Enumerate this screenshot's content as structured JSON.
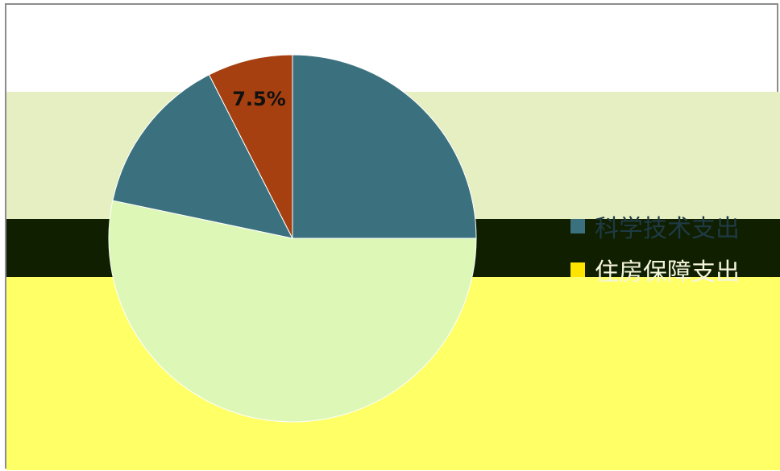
{
  "chart_data": {
    "type": "pie",
    "title": "",
    "slices": [
      {
        "label": "",
        "value": 25.0,
        "color": "#3b717f",
        "label_color": "#000000"
      },
      {
        "label": "",
        "value": 53.3,
        "color": "#dcf7b6",
        "label_color": "#2a2a2a"
      },
      {
        "label": "",
        "value": 14.2,
        "color": "#3b717f",
        "label_color": "#ffffff"
      },
      {
        "label": "7.5%",
        "value": 7.5,
        "color": "#a64010",
        "label_color": "#111111"
      }
    ],
    "data_labels": [
      "",
      "",
      "",
      "7.5%"
    ],
    "legend": {
      "position": "right",
      "entries": [
        {
          "label": "科学技术支出",
          "color": "#3b717f",
          "text_color": "#1f3a44"
        },
        {
          "label": "住房保障支出",
          "color": "#ffe400",
          "text_color": "#f5f5dc"
        }
      ]
    }
  }
}
